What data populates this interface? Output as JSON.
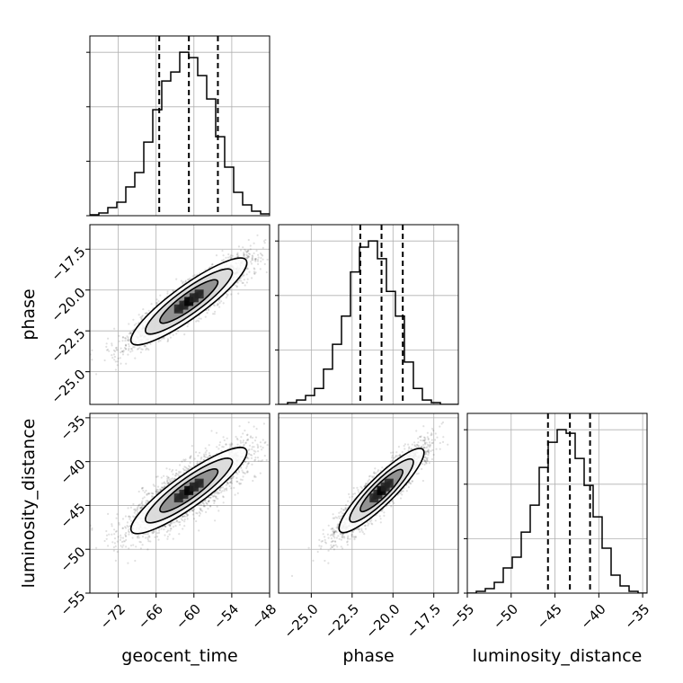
{
  "chart_data": {
    "type": "corner",
    "parameters": [
      "geocent_time",
      "phase",
      "luminosity_distance"
    ],
    "axis_labels": {
      "geocent_time": "geocent_time",
      "phase": "phase",
      "luminosity_distance": "luminosity_distance"
    },
    "ranges": {
      "geocent_time": [
        -76.5,
        -48
      ],
      "phase": [
        -27,
        -16
      ],
      "luminosity_distance": [
        -55,
        -34.5
      ]
    },
    "ticks": {
      "geocent_time": [
        -72,
        -66,
        -60,
        -54,
        -48
      ],
      "phase": [
        -25.0,
        -22.5,
        -20.0,
        -17.5
      ],
      "luminosity_distance": [
        -55,
        -50,
        -45,
        -40,
        -35
      ]
    },
    "tick_labels": {
      "geocent_time": [
        "−72",
        "−66",
        "−60",
        "−54",
        "−48"
      ],
      "phase": [
        "−25.0",
        "−22.5",
        "−20.0",
        "−17.5"
      ],
      "luminosity_distance": [
        "−55",
        "−50",
        "−45",
        "−40",
        "−35"
      ]
    },
    "quantiles": {
      "geocent_time": [
        -65.5,
        -60.8,
        -56.2
      ],
      "phase": [
        -22.0,
        -20.7,
        -19.4
      ],
      "luminosity_distance": [
        -45.8,
        -43.3,
        -41.0
      ]
    },
    "histograms": {
      "geocent_time": {
        "edges": [
          -76.5,
          -75.075,
          -73.65,
          -72.225,
          -70.8,
          -69.375,
          -67.95,
          -66.525,
          -65.1,
          -63.675,
          -62.25,
          -60.825,
          -59.4,
          -57.975,
          -56.55,
          -55.125,
          -53.7,
          -52.275,
          -50.85,
          -49.425,
          -48
        ],
        "counts": [
          1,
          3,
          9,
          15,
          32,
          48,
          82,
          118,
          150,
          160,
          182,
          176,
          156,
          130,
          88,
          54,
          26,
          12,
          5,
          2
        ]
      },
      "phase": {
        "edges": [
          -27,
          -26.45,
          -25.9,
          -25.35,
          -24.8,
          -24.25,
          -23.7,
          -23.15,
          -22.6,
          -22.05,
          -21.5,
          -20.95,
          -20.4,
          -19.85,
          -19.3,
          -18.75,
          -18.2,
          -17.65,
          -17.1,
          -16.55,
          -16
        ],
        "counts": [
          0,
          2,
          5,
          10,
          18,
          40,
          68,
          100,
          150,
          178,
          185,
          165,
          128,
          100,
          48,
          18,
          5,
          2,
          0,
          0
        ]
      },
      "luminosity_distance": {
        "edges": [
          -55,
          -53.975,
          -52.95,
          -51.925,
          -50.9,
          -49.875,
          -48.85,
          -47.825,
          -46.8,
          -45.775,
          -44.75,
          -43.725,
          -42.7,
          -41.675,
          -40.65,
          -39.625,
          -38.6,
          -37.575,
          -36.55,
          -35.525,
          -34.5
        ],
        "counts": [
          0,
          2,
          5,
          12,
          28,
          40,
          68,
          98,
          140,
          168,
          182,
          178,
          150,
          120,
          85,
          50,
          20,
          8,
          2,
          0
        ]
      }
    },
    "contour_levels": [
      0.118,
      0.393,
      0.675,
      0.865
    ],
    "grid": true,
    "scatter": {
      "count": 3000,
      "seed": 7
    }
  }
}
